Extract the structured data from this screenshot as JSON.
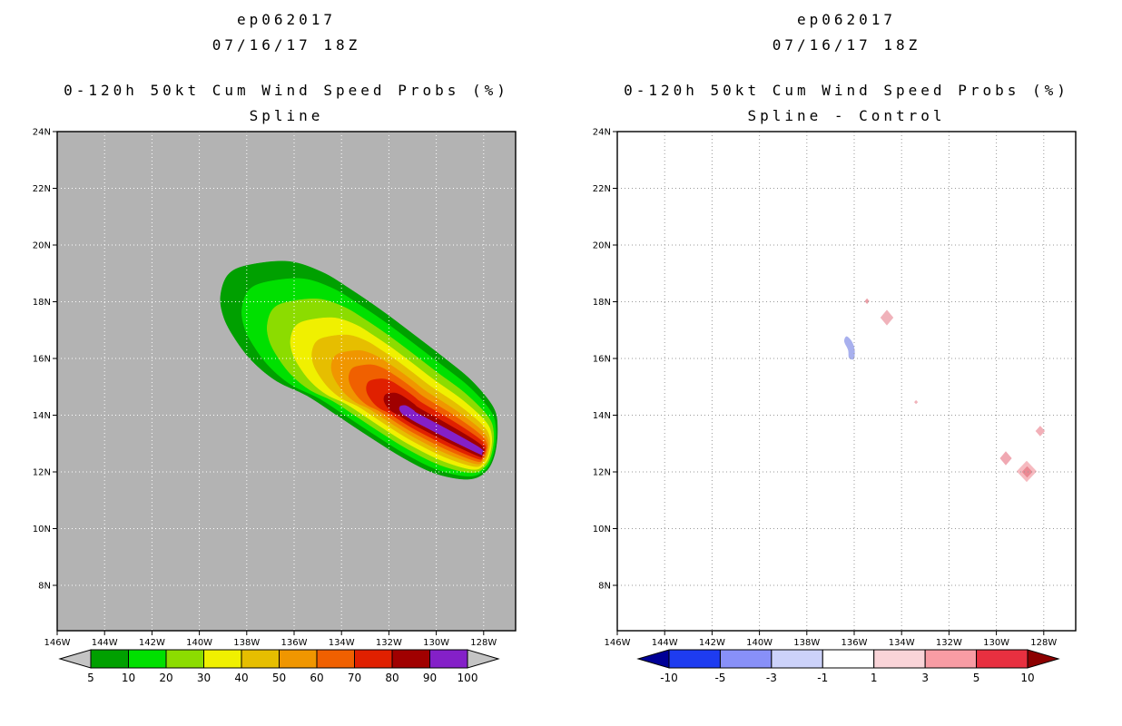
{
  "panels": [
    {
      "storm_id": "ep062017",
      "valid_time": "07/16/17 18Z",
      "product_title": "0-120h 50kt Cum Wind Speed Probs (%)",
      "method": "Spline"
    },
    {
      "storm_id": "ep062017",
      "valid_time": "07/16/17 18Z",
      "product_title": "0-120h 50kt Cum Wind Speed Probs (%)",
      "method": "Spline - Control"
    }
  ],
  "axes": {
    "lon_tick_labels": [
      "146W",
      "144W",
      "142W",
      "140W",
      "138W",
      "136W",
      "134W",
      "132W",
      "130W",
      "128W"
    ],
    "lon_tick_values": [
      146,
      144,
      142,
      140,
      138,
      136,
      134,
      132,
      130,
      128
    ],
    "lat_tick_labels": [
      "24N",
      "22N",
      "20N",
      "18N",
      "16N",
      "14N",
      "12N",
      "10N",
      "8N"
    ],
    "lat_tick_values": [
      24,
      22,
      20,
      18,
      16,
      14,
      12,
      10,
      8
    ],
    "lon_range_degW": [
      146,
      126.65
    ],
    "lat_range_degN": [
      6.4,
      24
    ]
  },
  "chart_data": [
    {
      "type": "filled_contour_map",
      "panel": "left",
      "title": "ep062017 07/16/17 18Z",
      "subtitle": "0-120h 50kt Cum Wind Speed Probs (%) - Spline",
      "units": "percent",
      "background_color": "#b3b3b3",
      "grid": {
        "on": true,
        "style": "dotted",
        "color": "#ffffff"
      },
      "colorbar": {
        "tick_labels": [
          "5",
          "10",
          "20",
          "30",
          "40",
          "50",
          "60",
          "70",
          "80",
          "90",
          "100"
        ],
        "bin_colors": [
          "#00A000",
          "#00E000",
          "#8CDC00",
          "#F0F000",
          "#E6BE00",
          "#F09600",
          "#F06000",
          "#E02000",
          "#A00000",
          "#8420C8"
        ],
        "under_arrow_color": "#C4C4C4",
        "over_arrow_color": "#C4C4C4"
      },
      "contour_field": {
        "levels_percent": [
          5,
          10,
          20,
          30,
          40,
          50,
          60,
          70,
          80,
          90
        ],
        "outer_boundary_lonW_lat": [
          [
            139.1,
            18.24
          ],
          [
            138.76,
            18.98
          ],
          [
            137.88,
            19.3
          ],
          [
            136.23,
            19.42
          ],
          [
            134.81,
            19.04
          ],
          [
            133.66,
            18.46
          ],
          [
            132.32,
            17.7
          ],
          [
            130.98,
            16.86
          ],
          [
            129.64,
            16.0
          ],
          [
            128.49,
            15.2
          ],
          [
            127.61,
            14.3
          ],
          [
            127.42,
            13.6
          ],
          [
            127.53,
            12.64
          ],
          [
            127.92,
            12.0
          ],
          [
            128.68,
            11.74
          ],
          [
            130.02,
            11.94
          ],
          [
            131.36,
            12.48
          ],
          [
            132.78,
            13.22
          ],
          [
            134.16,
            13.98
          ],
          [
            135.46,
            14.69
          ],
          [
            136.73,
            15.2
          ],
          [
            137.76,
            15.9
          ],
          [
            138.53,
            16.74
          ],
          [
            138.99,
            17.5
          ]
        ],
        "core_spine_lonW_lat": [
          [
            130.9,
            13.9
          ],
          [
            128.1,
            12.7
          ]
        ],
        "level_shrink": [
          0,
          0.11,
          0.24,
          0.36,
          0.47,
          0.57,
          0.66,
          0.75,
          0.84,
          0.92
        ],
        "max_bin_percent": "90-100",
        "max_region_lonW_lat": [
          129.5,
          13.3
        ]
      }
    },
    {
      "type": "filled_contour_difference_map",
      "panel": "right",
      "title": "ep062017 07/16/17 18Z",
      "subtitle": "0-120h 50kt Cum Wind Speed Probs (%) - Spline - Control",
      "units": "percent difference",
      "background_color": "#ffffff",
      "grid": {
        "on": true,
        "style": "dotted",
        "color": "#999999"
      },
      "colorbar": {
        "tick_labels": [
          "-10",
          "-5",
          "-3",
          "-1",
          "1",
          "3",
          "5",
          "10"
        ],
        "bin_colors": [
          "#1E3CF0",
          "#8890F8",
          "#CCD2FA",
          "#FFFFFF",
          "#FAD4D8",
          "#F89CA4",
          "#E83040"
        ],
        "under_arrow_color": "#000096",
        "over_arrow_color": "#8C0000"
      },
      "difference_features": [
        {
          "shape": "polygon",
          "sign": "negative",
          "approx_value": "-1 to -3",
          "color": "#A8B0EE",
          "points_lonW_lat": [
            [
              136.32,
              16.78
            ],
            [
              136.1,
              16.6
            ],
            [
              135.98,
              16.3
            ],
            [
              136.02,
              15.98
            ],
            [
              136.22,
              16.02
            ],
            [
              136.26,
              16.3
            ],
            [
              136.42,
              16.6
            ]
          ]
        },
        {
          "shape": "diamond",
          "sign": "positive",
          "approx_value": "+1 to +3",
          "color": "#F0B2BA",
          "lonW": 134.62,
          "lat": 17.44,
          "w_deg": 0.55,
          "h_deg": 0.55
        },
        {
          "shape": "diamond",
          "sign": "positive",
          "approx_value": "+1 to +3",
          "color": "#ECA0A8",
          "lonW": 135.46,
          "lat": 18.02,
          "w_deg": 0.2,
          "h_deg": 0.2
        },
        {
          "shape": "diamond",
          "sign": "positive",
          "approx_value": "+1 to +3",
          "color": "#F0B2BA",
          "lonW": 133.39,
          "lat": 14.46,
          "w_deg": 0.16,
          "h_deg": 0.14
        },
        {
          "shape": "diamond",
          "sign": "positive",
          "approx_value": "+1 to +3",
          "color": "#F0A8B2",
          "lonW": 129.6,
          "lat": 12.48,
          "w_deg": 0.5,
          "h_deg": 0.5
        },
        {
          "shape": "diamond",
          "sign": "positive",
          "approx_value": "+1 to +3",
          "color": "#F6BAC0",
          "lonW": 128.72,
          "lat": 12.02,
          "w_deg": 0.85,
          "h_deg": 0.75
        },
        {
          "shape": "diamond",
          "sign": "positive",
          "approx_value": "+3 to +5",
          "color": "#EA8892",
          "lonW": 128.7,
          "lat": 12.0,
          "w_deg": 0.45,
          "h_deg": 0.4
        },
        {
          "shape": "diamond",
          "sign": "positive",
          "approx_value": "+1 to +3",
          "color": "#F2B0B8",
          "lonW": 128.15,
          "lat": 13.44,
          "w_deg": 0.4,
          "h_deg": 0.38
        }
      ]
    }
  ]
}
